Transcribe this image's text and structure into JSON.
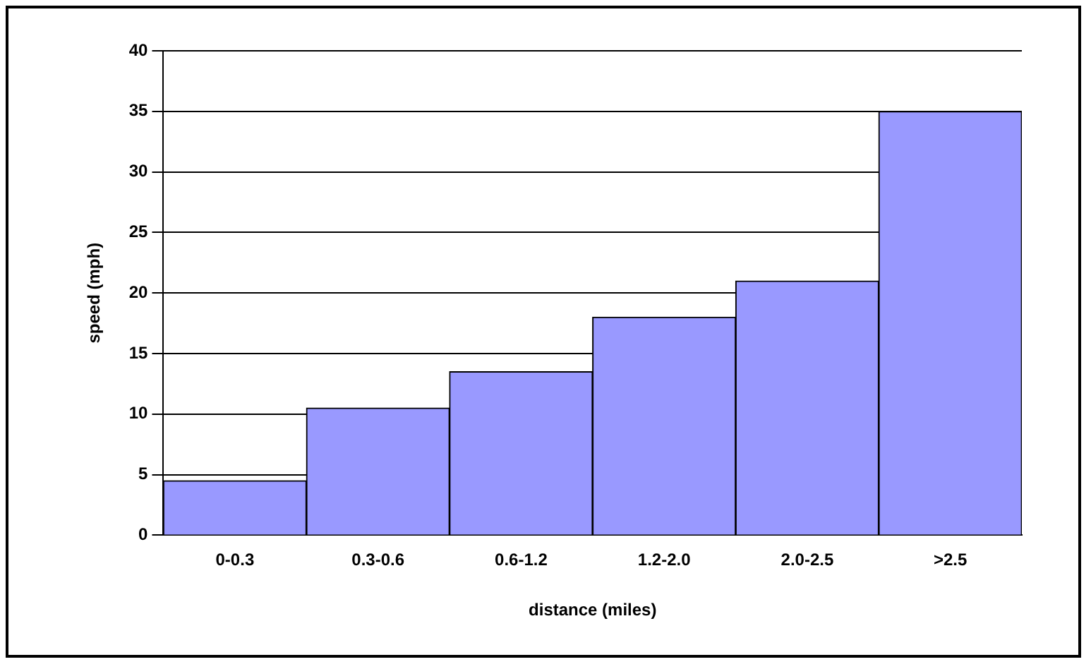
{
  "chart_data": {
    "type": "bar",
    "xlabel": "distance (miles)",
    "ylabel": "speed (mph)",
    "categories": [
      "0-0.3",
      "0.3-0.6",
      "0.6-1.2",
      "1.2-2.0",
      "2.0-2.5",
      ">2.5"
    ],
    "values": [
      4.5,
      10.5,
      13.5,
      18,
      21,
      35
    ],
    "color": "#9999ff",
    "ylim": [
      0,
      40
    ],
    "yticks": [
      0,
      5,
      10,
      15,
      20,
      25,
      30,
      35,
      40
    ],
    "grid": "y"
  }
}
